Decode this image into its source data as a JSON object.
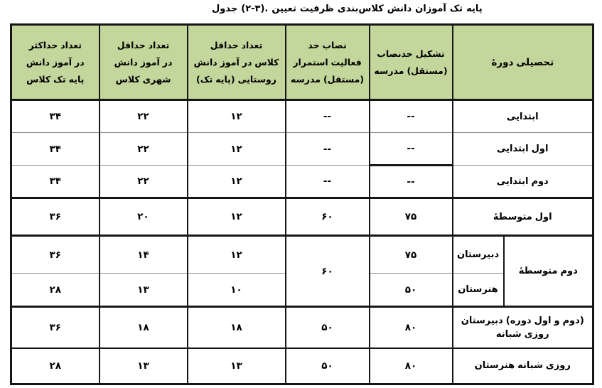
{
  "title": {
    "text": "جدول (۲-۳). تعیین ظرفیت کلاس‌بندی دانش آموزان تک پایه"
  },
  "colors": {
    "header_bg": "#c3d69b",
    "border_dark": "#161616",
    "border_light": "#8f8f8f",
    "text": "#000000"
  },
  "table": {
    "header": {
      "max_per_class": [
        "حداکثر تعداد",
        "دانش آموز در",
        "کلاس تک پایه"
      ],
      "min_urban": [
        "حداقل تعداد",
        "دانش آموز در",
        "کلاس شهری"
      ],
      "min_rural": [
        "حداقل تعداد",
        "دانش آموز در کلاس",
        "(تک پایه) روستایی"
      ],
      "quorum_continue": [
        "حد نصاب",
        "استمرار فعالیت",
        "مدرسه (مستقل)"
      ],
      "quorum_establish": [
        "حدنصاب تشکیل",
        "مدرسه (مستقل)"
      ],
      "course": "دورهٔ تحصیلی"
    },
    "rows": [
      {
        "max": "۳۴",
        "urban": "۲۲",
        "rural": "۱۲",
        "cont": "--",
        "est": "--",
        "course": "ابتدایی"
      },
      {
        "max": "۳۴",
        "urban": "۲۲",
        "rural": "۱۲",
        "cont": "--",
        "est": "--",
        "course": "ابتدایی اول"
      },
      {
        "max": "۳۴",
        "urban": "۲۲",
        "rural": "۱۲",
        "cont": "--",
        "est": "--",
        "course": "ابتدایی دوم"
      },
      {
        "max": "۳۶",
        "urban": "۲۰",
        "rural": "۱۲",
        "cont": "۶۰",
        "est": "۷۵",
        "course": "متوسطهٔ اول"
      },
      {
        "max": "۳۶",
        "urban": "۱۴",
        "rural": "۱۲",
        "cont": "۶۰",
        "est": "۷۵",
        "sub": "دبیرستان",
        "group": "متوسطهٔ دوم"
      },
      {
        "max": "۲۸",
        "urban": "۱۳",
        "rural": "۱۰",
        "est": "۵۰",
        "sub": "هنرستان"
      },
      {
        "max": "۳۶",
        "urban": "۱۸",
        "rural": "۱۸",
        "cont": "۵۰",
        "est": "۸۰",
        "course_line1": "دبیرستان (دوره اول و دوم)",
        "course_line2": "شبانه روزی"
      },
      {
        "max": "۲۸",
        "urban": "۱۳",
        "rural": "۱۳",
        "cont": "۵۰",
        "est": "۸۰",
        "course": "هنرستان شبانه روزی"
      }
    ]
  }
}
